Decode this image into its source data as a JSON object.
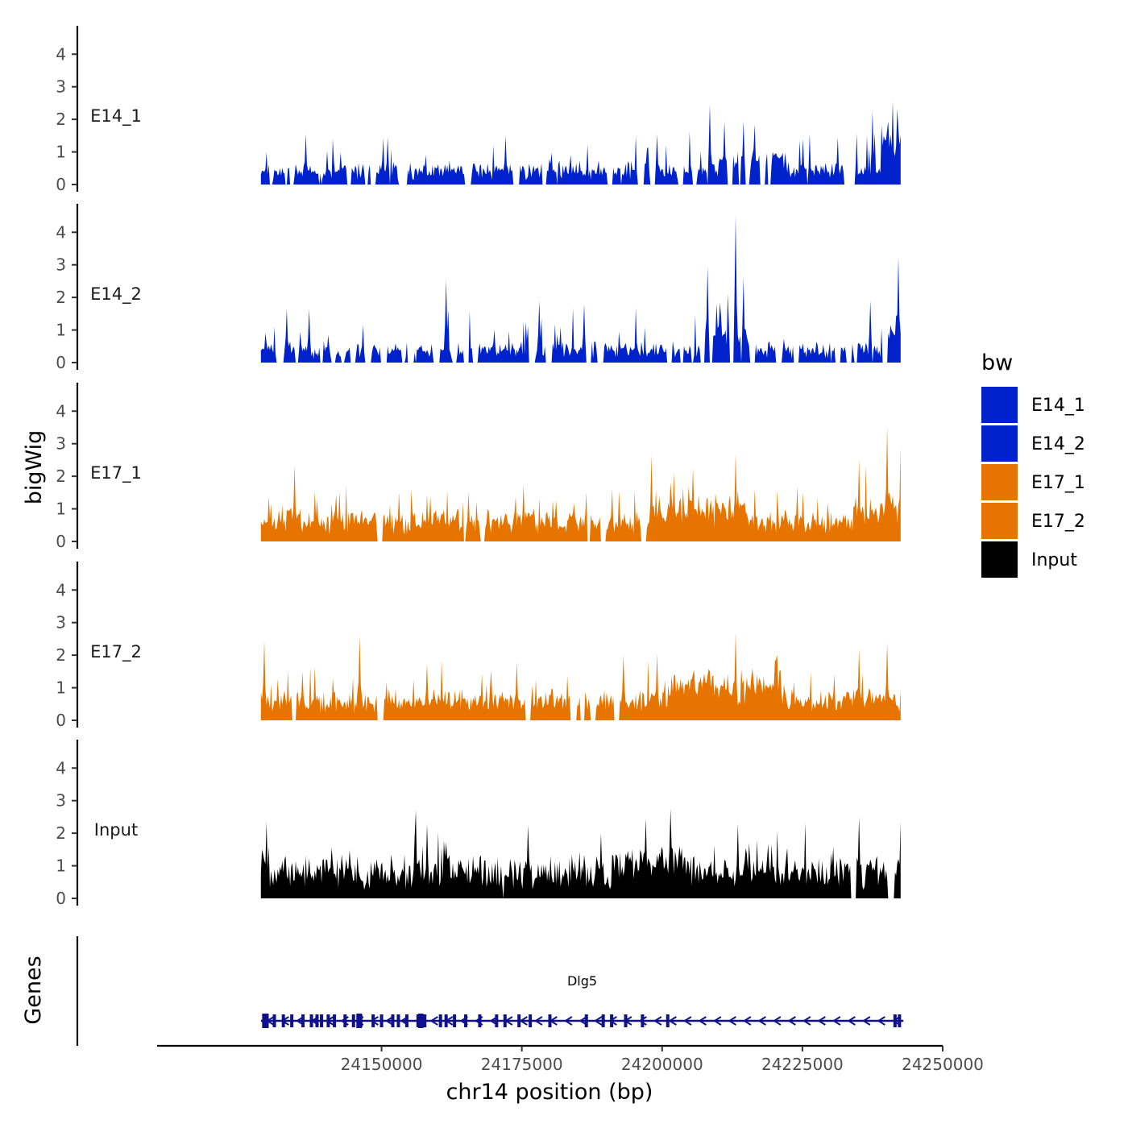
{
  "chart_data": {
    "type": "area",
    "chromosome": "chr14",
    "xlabel": "chr14 position (bp)",
    "ylabel": "bigWig",
    "genes_ylabel": "Genes",
    "xlim": [
      24110000,
      24250000
    ],
    "signal_range": [
      24128500,
      24242500
    ],
    "x_ticks": [
      24150000,
      24175000,
      24200000,
      24225000,
      24250000
    ],
    "x_tick_labels": [
      "24150000",
      "24175000",
      "24200000",
      "24225000",
      "24250000"
    ],
    "ylim": [
      0,
      4.6
    ],
    "y_ticks": [
      0,
      1,
      2,
      3,
      4
    ],
    "y_tick_labels": [
      "0",
      "1",
      "2",
      "3",
      "4"
    ],
    "legend": {
      "title": "bw",
      "entries": [
        {
          "label": "E14_1",
          "color": "#0022cc"
        },
        {
          "label": "E14_2",
          "color": "#0022cc"
        },
        {
          "label": "E17_1",
          "color": "#e87400"
        },
        {
          "label": "E17_2",
          "color": "#e87400"
        },
        {
          "label": "Input",
          "color": "#000000"
        }
      ]
    },
    "series": [
      {
        "name": "E14_1",
        "color": "#0022cc",
        "seed": 11,
        "base": 0.35,
        "noise": 0.3,
        "peak_prob": 0.07,
        "peak_max": 1.3,
        "gap_prob": 0.06,
        "peaks": [
          [
            24136500,
            1.55
          ],
          [
            24151000,
            1.45
          ],
          [
            24172000,
            1.5
          ],
          [
            24199000,
            1.55
          ],
          [
            24208500,
            2.45
          ],
          [
            24211000,
            1.95
          ],
          [
            24214500,
            1.95
          ],
          [
            24216500,
            1.85
          ],
          [
            24225000,
            1.4
          ],
          [
            24237500,
            2.25
          ],
          [
            24241000,
            2.55
          ],
          [
            24242000,
            1.7
          ]
        ],
        "bumps": [
          [
            24210000,
            24222000,
            0.35
          ],
          [
            24239000,
            24242500,
            0.7
          ]
        ]
      },
      {
        "name": "E14_2",
        "color": "#0022cc",
        "seed": 23,
        "base": 0.3,
        "noise": 0.3,
        "peak_prob": 0.07,
        "peak_max": 1.3,
        "gap_prob": 0.07,
        "peaks": [
          [
            24133000,
            1.65
          ],
          [
            24137000,
            1.65
          ],
          [
            24161500,
            2.55
          ],
          [
            24178000,
            1.9
          ],
          [
            24186000,
            1.8
          ],
          [
            24208000,
            2.95
          ],
          [
            24213000,
            4.5
          ],
          [
            24214500,
            2.6
          ],
          [
            24237000,
            1.9
          ],
          [
            24242000,
            3.25
          ]
        ],
        "bumps": [
          [
            24207000,
            24216000,
            0.5
          ],
          [
            24239000,
            24242500,
            0.6
          ]
        ]
      },
      {
        "name": "E17_1",
        "color": "#e87400",
        "seed": 37,
        "base": 0.55,
        "noise": 0.35,
        "peak_prob": 0.09,
        "peak_max": 1.1,
        "gap_prob": 0.01,
        "peaks": [
          [
            24134500,
            2.35
          ],
          [
            24153000,
            1.5
          ],
          [
            24165500,
            1.5
          ],
          [
            24198000,
            2.65
          ],
          [
            24205500,
            2.25
          ],
          [
            24213000,
            2.7
          ],
          [
            24225000,
            1.5
          ],
          [
            24235000,
            2.5
          ],
          [
            24240000,
            3.55
          ],
          [
            24242500,
            2.9
          ]
        ],
        "bumps": [
          [
            24198000,
            24215000,
            0.35
          ],
          [
            24234000,
            24242500,
            0.4
          ]
        ]
      },
      {
        "name": "E17_2",
        "color": "#e87400",
        "seed": 51,
        "base": 0.5,
        "noise": 0.35,
        "peak_prob": 0.09,
        "peak_max": 1.1,
        "gap_prob": 0.02,
        "peaks": [
          [
            24129000,
            2.45
          ],
          [
            24146000,
            2.6
          ],
          [
            24158000,
            1.75
          ],
          [
            24174000,
            1.8
          ],
          [
            24193000,
            2.0
          ],
          [
            24199000,
            2.05
          ],
          [
            24213000,
            2.7
          ],
          [
            24220500,
            2.0
          ],
          [
            24235000,
            2.2
          ],
          [
            24240000,
            2.4
          ]
        ],
        "bumps": [
          [
            24201000,
            24213000,
            0.5
          ],
          [
            24214000,
            24222000,
            0.45
          ]
        ]
      },
      {
        "name": "Input",
        "color": "#000000",
        "seed": 67,
        "base": 0.75,
        "noise": 0.4,
        "peak_prob": 0.1,
        "peak_max": 1.1,
        "gap_prob": 0.004,
        "peaks": [
          [
            24129500,
            2.35
          ],
          [
            24156000,
            2.7
          ],
          [
            24176000,
            2.25
          ],
          [
            24189000,
            2.0
          ],
          [
            24197000,
            2.45
          ],
          [
            24201500,
            2.75
          ],
          [
            24213500,
            2.3
          ],
          [
            24235000,
            2.5
          ],
          [
            24242500,
            2.35
          ]
        ],
        "bumps": [
          [
            24191000,
            24205000,
            0.3
          ]
        ]
      }
    ],
    "genes": [
      {
        "name": "Dlg5",
        "start": 24128500,
        "end": 24243000,
        "strand": "-",
        "exons": [
          24129200,
          24130900,
          24132500,
          24134000,
          24136000,
          24137500,
          24138500,
          24139300,
          24140500,
          24141600,
          24143500,
          24145000,
          24146300,
          24148500,
          24150000,
          24152000,
          24153000,
          24154500,
          24156500,
          24157700,
          24160500,
          24161500,
          24163000,
          24165000,
          24167500,
          24170500,
          24172000,
          24174500,
          24176500,
          24180000,
          24186500,
          24189500,
          24191000,
          24193500,
          24196500,
          24201000,
          24241500,
          24242300
        ],
        "wide_exons": [
          24129000,
          24129600,
          24145800,
          24146200,
          24156800,
          24157200
        ]
      }
    ]
  }
}
